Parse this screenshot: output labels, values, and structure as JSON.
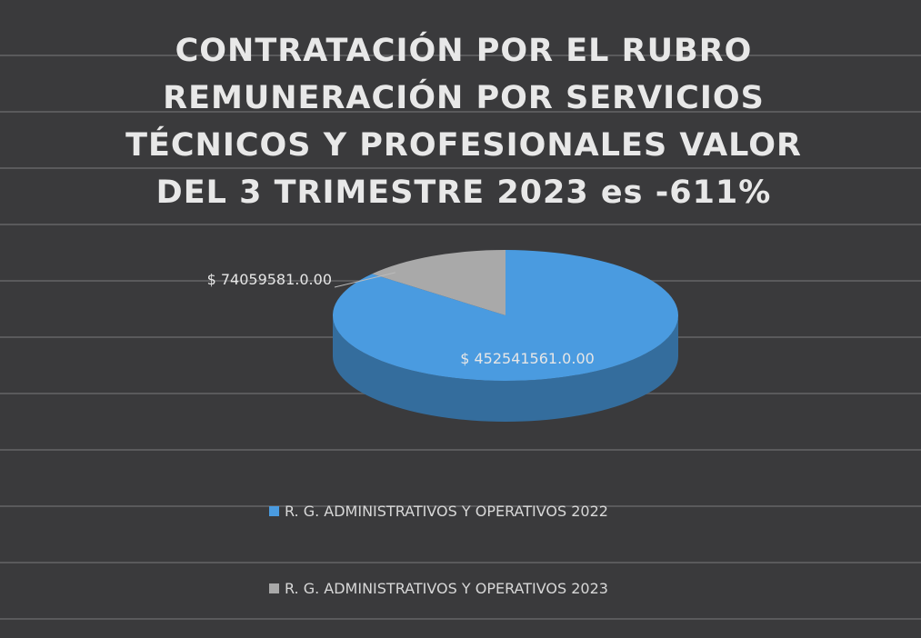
{
  "chart_data": {
    "type": "pie",
    "title": "CONTRATACIÓN POR EL RUBRO REMUNERACIÓN POR SERVICIOS TÉCNICOS Y PROFESIONALES VALOR DEL 3 TRIMESTRE 2023 es -611%",
    "categories": [
      "R. G. ADMINISTRATIVOS Y OPERATIVOS 2022",
      "R. G. ADMINISTRATIVOS Y OPERATIVOS 2023"
    ],
    "values": [
      452541561,
      74059581
    ],
    "value_labels": [
      "$ 452541561.0.00",
      "$ 74059581.0.00"
    ],
    "colors": [
      "#4a9be0",
      "#a9a9a9"
    ]
  }
}
